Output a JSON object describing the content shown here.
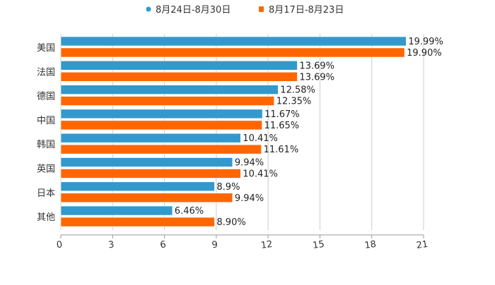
{
  "chart_data": {
    "type": "bar",
    "orientation": "horizontal",
    "title": "",
    "xlabel": "",
    "ylabel": "",
    "categories": [
      "美国",
      "法国",
      "德国",
      "中国",
      "韩国",
      "英国",
      "日本",
      "其他"
    ],
    "series": [
      {
        "name": "8月24日-8月30日",
        "color": "#3399cc",
        "values": [
          19.99,
          13.69,
          12.58,
          11.67,
          10.41,
          9.94,
          8.9,
          6.46
        ],
        "labels": [
          "19.99%",
          "13.69%",
          "12.58%",
          "11.67%",
          "10.41%",
          "9.94%",
          "8.9%",
          "6.46%"
        ]
      },
      {
        "name": "8月17日-8月23日",
        "color": "#ff6600",
        "values": [
          19.9,
          13.69,
          12.35,
          11.65,
          11.61,
          10.41,
          9.94,
          8.9
        ],
        "labels": [
          "19.90%",
          "13.69%",
          "12.35%",
          "11.65%",
          "11.61%",
          "10.41%",
          "9.94%",
          "8.90%"
        ]
      }
    ],
    "xlim": [
      0,
      21
    ],
    "xticks": [
      "0",
      "3",
      "6",
      "9",
      "12",
      "15",
      "18",
      "21"
    ],
    "grid": true,
    "legend": "top-center"
  }
}
